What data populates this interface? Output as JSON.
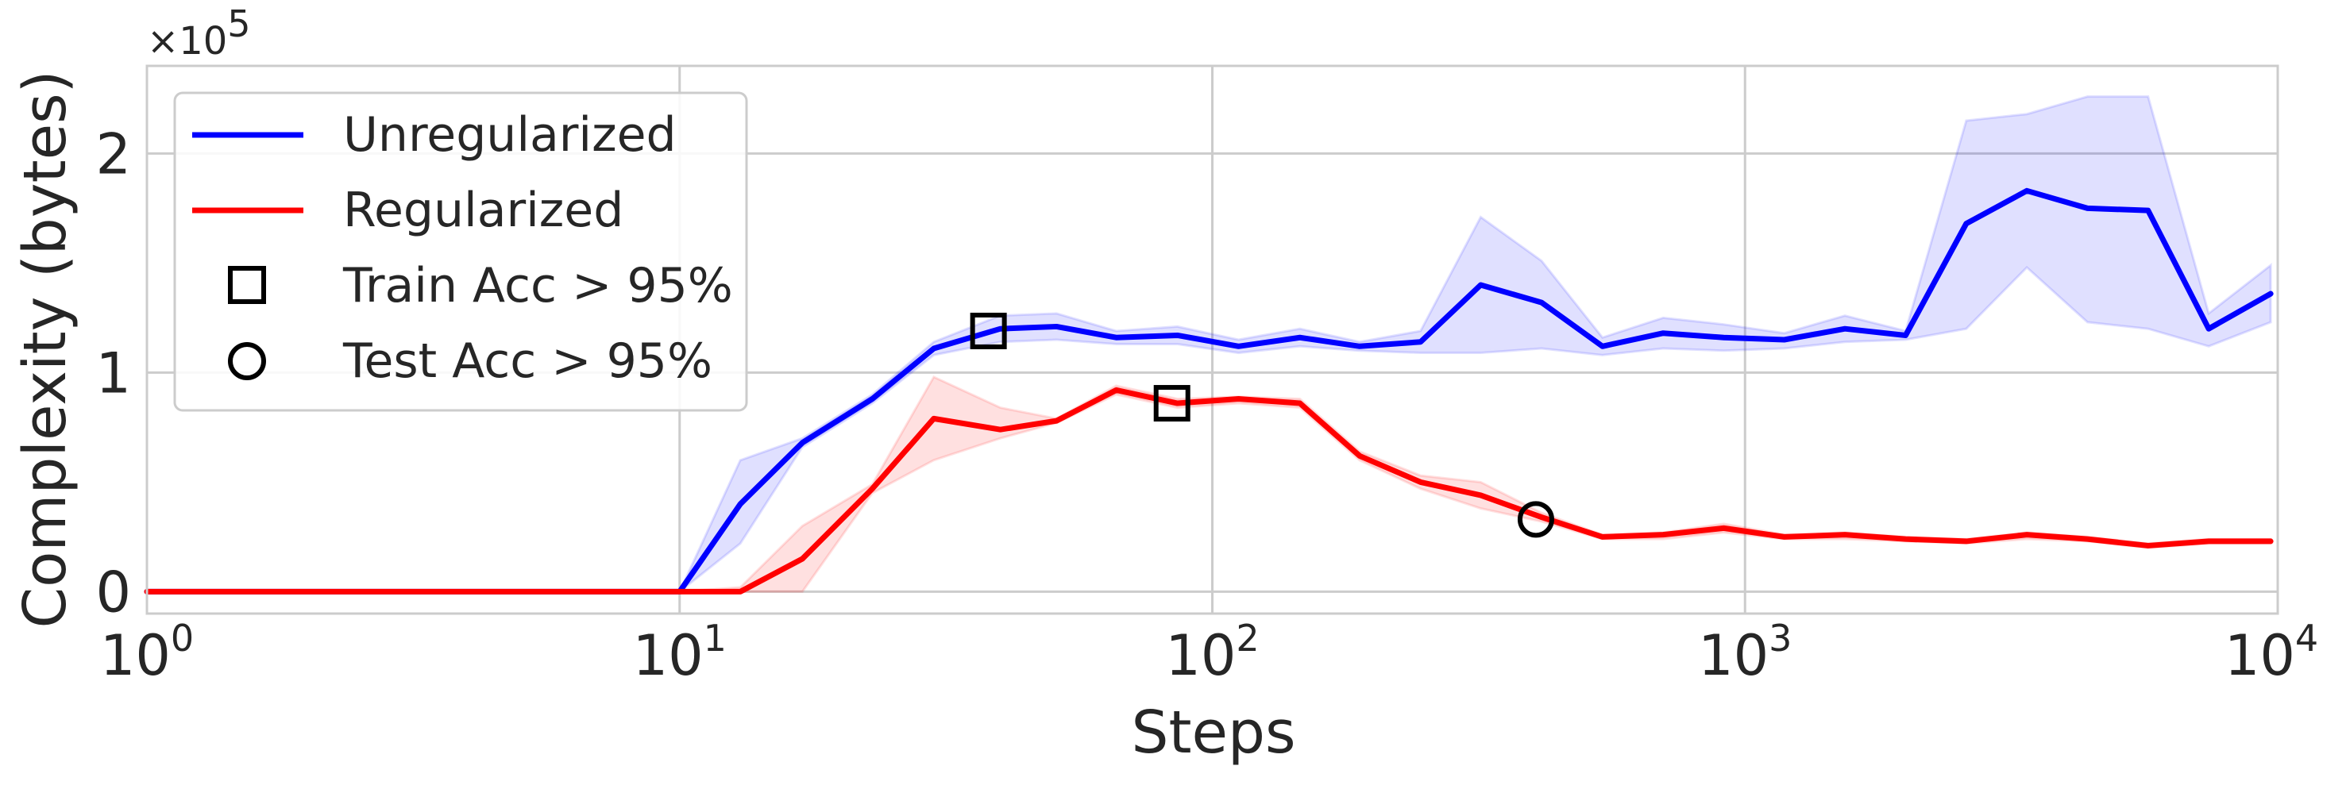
{
  "chart_data": {
    "type": "line",
    "xlabel": "Steps",
    "ylabel": "Complexity (bytes)",
    "x_scale": "log",
    "xlim": [
      1,
      10000
    ],
    "ylim": [
      -10000,
      240000
    ],
    "y_multiplier_label": "×10",
    "y_multiplier_exp": "5",
    "x_ticks": [
      {
        "value": 1,
        "base": "10",
        "exp": "0"
      },
      {
        "value": 10,
        "base": "10",
        "exp": "1"
      },
      {
        "value": 100,
        "base": "10",
        "exp": "2"
      },
      {
        "value": 1000,
        "base": "10",
        "exp": "3"
      },
      {
        "value": 10000,
        "base": "10",
        "exp": "4"
      }
    ],
    "y_ticks": [
      {
        "value": 0,
        "label": "0"
      },
      {
        "value": 100000,
        "label": "1"
      },
      {
        "value": 200000,
        "label": "2"
      }
    ],
    "grid": true,
    "legend_position": "top-left",
    "series": [
      {
        "name": "Unregularized",
        "color": "#0000ff",
        "band_color": "#0000ff",
        "x": [
          1,
          10,
          13,
          17,
          23,
          30,
          40,
          51,
          66,
          86,
          112,
          146,
          189,
          246,
          319,
          415,
          540,
          702,
          912,
          1185,
          1540,
          2002,
          2602,
          3381,
          4394,
          5710,
          7420,
          9700
        ],
        "values": [
          0,
          0,
          40000,
          68000,
          88000,
          111000,
          120000,
          121000,
          116000,
          117000,
          112000,
          116000,
          112000,
          114000,
          140000,
          132000,
          112000,
          118000,
          116000,
          115000,
          120000,
          117000,
          168000,
          183000,
          175000,
          174000,
          120000,
          136000
        ],
        "lower": [
          0,
          0,
          22000,
          66000,
          86000,
          108000,
          114000,
          115000,
          113000,
          113000,
          109000,
          112000,
          110000,
          109000,
          109000,
          111000,
          108000,
          111000,
          110000,
          111000,
          114000,
          115000,
          120000,
          148000,
          123000,
          120000,
          112000,
          123000
        ],
        "upper": [
          0,
          0,
          60000,
          70000,
          90000,
          114000,
          126000,
          127000,
          119000,
          121000,
          115000,
          120000,
          114000,
          119000,
          171000,
          151000,
          116000,
          125000,
          122000,
          118000,
          126000,
          119000,
          215000,
          218000,
          226000,
          226000,
          127000,
          149000
        ]
      },
      {
        "name": "Regularized",
        "color": "#ff0000",
        "band_color": "#ff0000",
        "x": [
          1,
          10,
          13,
          17,
          23,
          30,
          40,
          51,
          66,
          86,
          112,
          146,
          189,
          246,
          319,
          415,
          540,
          702,
          912,
          1185,
          1540,
          2002,
          2602,
          3381,
          4394,
          5710,
          7420,
          9700
        ],
        "values": [
          0,
          0,
          0,
          15000,
          47000,
          79000,
          74000,
          78000,
          92000,
          86000,
          88000,
          86000,
          62000,
          50000,
          44000,
          34000,
          25000,
          26000,
          29000,
          25000,
          26000,
          24000,
          23000,
          26000,
          24000,
          21000,
          23000,
          23000
        ],
        "lower": [
          0,
          0,
          0,
          0,
          45000,
          60000,
          70000,
          77000,
          90000,
          84000,
          86000,
          84000,
          60000,
          47000,
          38000,
          32000,
          24000,
          24000,
          27000,
          24000,
          24000,
          23000,
          22000,
          24000,
          23000,
          20000,
          22000,
          22000
        ],
        "upper": [
          0,
          0,
          2000,
          30000,
          49000,
          98000,
          84000,
          79000,
          94000,
          88000,
          89000,
          88000,
          64000,
          53000,
          50000,
          36000,
          26000,
          27000,
          31000,
          26000,
          27000,
          25000,
          24000,
          27000,
          25000,
          22000,
          24000,
          24000
        ]
      }
    ],
    "markers": [
      {
        "name": "Train Acc > 95%",
        "shape": "square",
        "points": [
          {
            "x": 38,
            "y": 119000,
            "series": "Unregularized"
          },
          {
            "x": 84,
            "y": 86000,
            "series": "Regularized"
          }
        ]
      },
      {
        "name": "Test Acc > 95%",
        "shape": "circle",
        "points": [
          {
            "x": 405,
            "y": 33000,
            "series": "Regularized"
          }
        ]
      }
    ]
  }
}
